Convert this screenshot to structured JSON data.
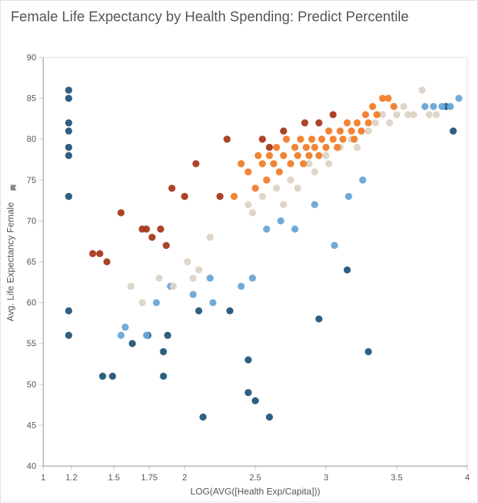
{
  "title": "Female Life Expectancy by Health Spending: Predict Percentile",
  "chart": {
    "type": "scatter",
    "xlabel": "LOG(AVG([Health Exp/Capita]))",
    "ylabel": "Avg. Life Expectancy Female",
    "ylabel_icon": "pin-icon",
    "xlim": [
      1.0,
      4.0
    ],
    "ylim": [
      40,
      90
    ],
    "xticks": [
      1,
      1.2,
      1.5,
      1.75,
      2,
      2.5,
      3,
      3.5,
      4
    ],
    "yticks": [
      40,
      45,
      50,
      55,
      60,
      65,
      70,
      75,
      80,
      85,
      90
    ],
    "marker_radius": 5,
    "background_color": "#ffffff",
    "tick_color": "#c8c8c8",
    "axis_color": "#888888",
    "text_color": "#555555",
    "title_fontsize": 20,
    "label_fontsize": 13,
    "tick_fontsize": 12,
    "series": {
      "dark_blue": {
        "color": "#24567a",
        "points": [
          [
            1.18,
            86
          ],
          [
            1.18,
            85
          ],
          [
            1.18,
            82
          ],
          [
            1.18,
            81
          ],
          [
            1.18,
            79
          ],
          [
            1.18,
            78
          ],
          [
            1.18,
            73
          ],
          [
            1.18,
            59
          ],
          [
            1.18,
            56
          ],
          [
            1.42,
            51
          ],
          [
            1.49,
            51
          ],
          [
            1.63,
            55
          ],
          [
            1.74,
            56
          ],
          [
            1.85,
            54
          ],
          [
            1.85,
            51
          ],
          [
            1.88,
            56
          ],
          [
            2.1,
            59
          ],
          [
            2.13,
            46
          ],
          [
            2.32,
            59
          ],
          [
            2.45,
            49
          ],
          [
            2.45,
            53
          ],
          [
            2.5,
            48
          ],
          [
            2.6,
            46
          ],
          [
            2.95,
            58
          ],
          [
            3.15,
            64
          ],
          [
            3.3,
            54
          ],
          [
            3.85,
            84
          ],
          [
            3.9,
            81
          ]
        ]
      },
      "light_blue": {
        "color": "#6aa7d6",
        "points": [
          [
            1.55,
            56
          ],
          [
            1.58,
            57
          ],
          [
            1.73,
            56
          ],
          [
            1.8,
            60
          ],
          [
            1.9,
            62
          ],
          [
            2.06,
            61
          ],
          [
            2.18,
            63
          ],
          [
            2.2,
            60
          ],
          [
            2.4,
            62
          ],
          [
            2.48,
            63
          ],
          [
            2.58,
            69
          ],
          [
            2.68,
            70
          ],
          [
            2.78,
            69
          ],
          [
            2.92,
            72
          ],
          [
            3.06,
            67
          ],
          [
            3.16,
            73
          ],
          [
            3.26,
            75
          ],
          [
            3.7,
            84
          ],
          [
            3.76,
            84
          ],
          [
            3.82,
            84
          ],
          [
            3.88,
            84
          ],
          [
            3.94,
            85
          ]
        ]
      },
      "beige": {
        "color": "#dcd4c7",
        "points": [
          [
            1.62,
            62
          ],
          [
            1.7,
            60
          ],
          [
            1.82,
            63
          ],
          [
            1.92,
            62
          ],
          [
            2.02,
            65
          ],
          [
            2.06,
            63
          ],
          [
            2.1,
            64
          ],
          [
            2.18,
            68
          ],
          [
            2.45,
            72
          ],
          [
            2.48,
            71
          ],
          [
            2.55,
            73
          ],
          [
            2.65,
            74
          ],
          [
            2.7,
            72
          ],
          [
            2.75,
            75
          ],
          [
            2.8,
            74
          ],
          [
            2.88,
            77
          ],
          [
            2.92,
            76
          ],
          [
            3.0,
            78
          ],
          [
            3.02,
            77
          ],
          [
            3.1,
            79
          ],
          [
            3.18,
            80
          ],
          [
            3.22,
            79
          ],
          [
            3.3,
            81
          ],
          [
            3.35,
            82
          ],
          [
            3.4,
            83
          ],
          [
            3.45,
            82
          ],
          [
            3.5,
            83
          ],
          [
            3.55,
            84
          ],
          [
            3.58,
            83
          ],
          [
            3.62,
            83
          ],
          [
            3.68,
            86
          ],
          [
            3.73,
            83
          ],
          [
            3.78,
            83
          ]
        ]
      },
      "orange": {
        "color": "#f07e2a",
        "points": [
          [
            2.35,
            73
          ],
          [
            2.4,
            77
          ],
          [
            2.45,
            76
          ],
          [
            2.5,
            74
          ],
          [
            2.52,
            78
          ],
          [
            2.55,
            77
          ],
          [
            2.58,
            75
          ],
          [
            2.6,
            78
          ],
          [
            2.63,
            77
          ],
          [
            2.65,
            79
          ],
          [
            2.67,
            76
          ],
          [
            2.7,
            78
          ],
          [
            2.72,
            80
          ],
          [
            2.75,
            77
          ],
          [
            2.78,
            79
          ],
          [
            2.8,
            78
          ],
          [
            2.82,
            80
          ],
          [
            2.84,
            77
          ],
          [
            2.86,
            79
          ],
          [
            2.88,
            78
          ],
          [
            2.9,
            80
          ],
          [
            2.92,
            79
          ],
          [
            2.95,
            78
          ],
          [
            2.97,
            80
          ],
          [
            3.0,
            79
          ],
          [
            3.02,
            81
          ],
          [
            3.05,
            80
          ],
          [
            3.08,
            79
          ],
          [
            3.1,
            81
          ],
          [
            3.12,
            80
          ],
          [
            3.15,
            82
          ],
          [
            3.18,
            81
          ],
          [
            3.2,
            80
          ],
          [
            3.22,
            82
          ],
          [
            3.25,
            81
          ],
          [
            3.28,
            83
          ],
          [
            3.3,
            82
          ],
          [
            3.33,
            84
          ],
          [
            3.36,
            83
          ],
          [
            3.4,
            85
          ],
          [
            3.44,
            85
          ],
          [
            3.48,
            84
          ]
        ]
      },
      "dark_red": {
        "color": "#a63a1d",
        "points": [
          [
            1.35,
            66
          ],
          [
            1.4,
            66
          ],
          [
            1.45,
            65
          ],
          [
            1.55,
            71
          ],
          [
            1.7,
            69
          ],
          [
            1.73,
            69
          ],
          [
            1.77,
            68
          ],
          [
            1.83,
            69
          ],
          [
            1.87,
            67
          ],
          [
            1.91,
            74
          ],
          [
            2.0,
            73
          ],
          [
            2.08,
            77
          ],
          [
            2.25,
            73
          ],
          [
            2.3,
            80
          ],
          [
            2.55,
            80
          ],
          [
            2.6,
            79
          ],
          [
            2.7,
            81
          ],
          [
            2.85,
            82
          ],
          [
            2.95,
            82
          ],
          [
            3.05,
            83
          ]
        ]
      }
    }
  }
}
